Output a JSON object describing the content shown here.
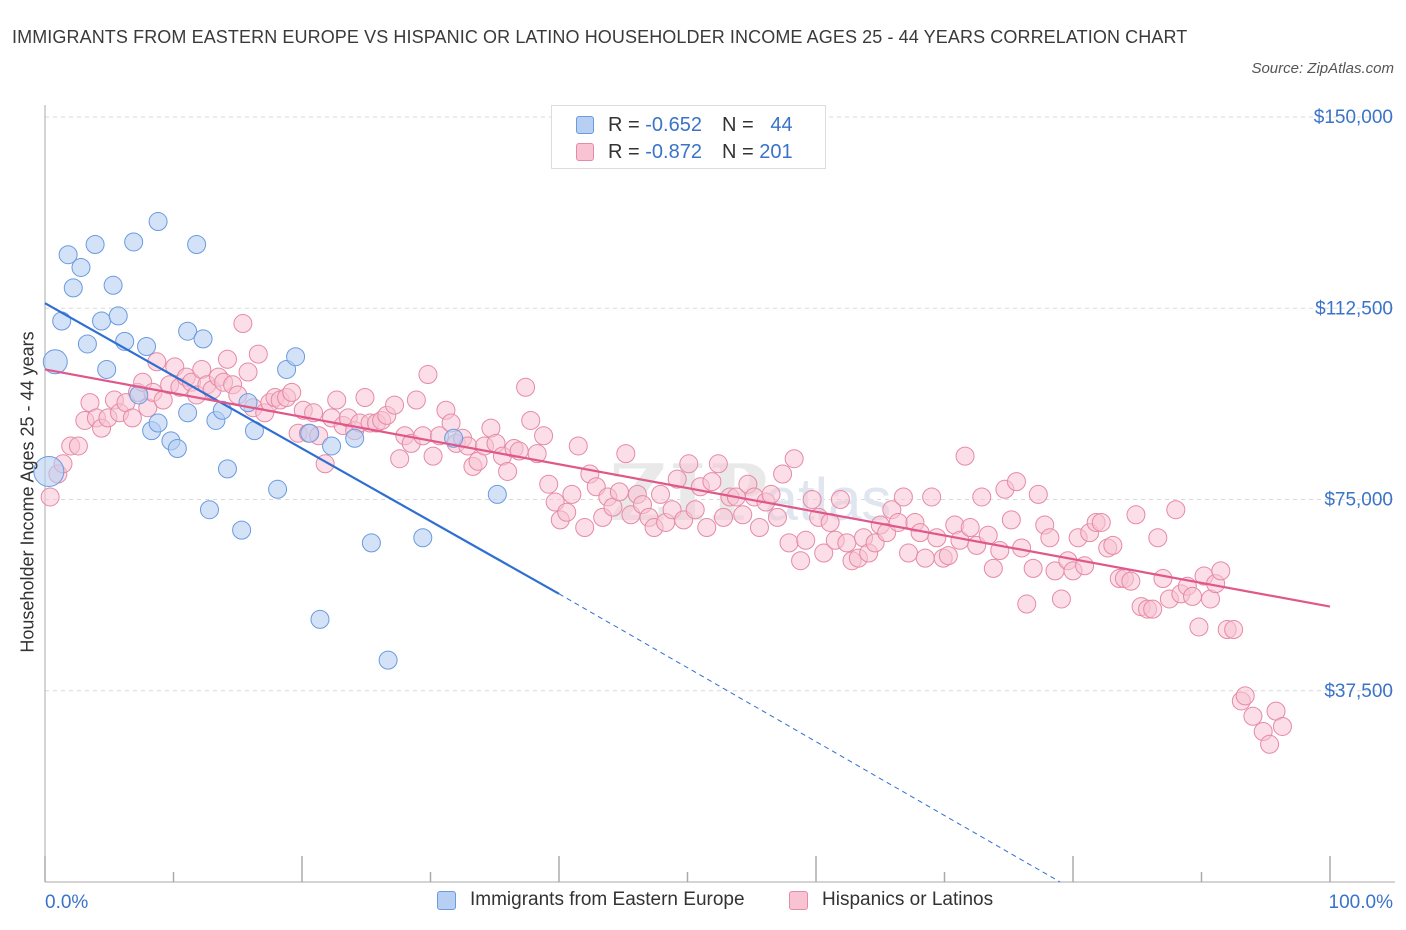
{
  "header": {
    "title": "IMMIGRANTS FROM EASTERN EUROPE VS HISPANIC OR LATINO HOUSEHOLDER INCOME AGES 25 - 44 YEARS CORRELATION CHART",
    "source": "Source: ZipAtlas.com"
  },
  "legend": {
    "r_label": "R =",
    "n_label": "N =",
    "series1_r": "-0.652",
    "series1_n": "44",
    "series2_r": "-0.872",
    "series2_n": "201"
  },
  "colors": {
    "blue_fill": "#b6cff2",
    "blue_stroke": "#6a9be0",
    "blue_line": "#2f6fd1",
    "pink_fill": "#f8c3d3",
    "pink_stroke": "#e68aa6",
    "pink_line": "#e0588a",
    "axis_text": "#3a73c8",
    "grid": "#d8d8d8"
  },
  "chart_data": {
    "type": "scatter",
    "title": "IMMIGRANTS FROM EASTERN EUROPE VS HISPANIC OR LATINO HOUSEHOLDER INCOME AGES 25 - 44 YEARS CORRELATION CHART",
    "xlabel": "",
    "ylabel": "Householder Income Ages 25 - 44 years",
    "xlim": [
      0,
      100
    ],
    "ylim": [
      0,
      150000
    ],
    "x_tick_labels": [
      "0.0%",
      "100.0%"
    ],
    "y_ticks": [
      37500,
      75000,
      112500,
      150000
    ],
    "y_tick_labels": [
      "$37,500",
      "$75,000",
      "$112,500",
      "$150,000"
    ],
    "grid": true,
    "legend_position": "top-center",
    "series": [
      {
        "name": "Immigrants from Eastern Europe",
        "color": "#6a9be0",
        "r": -0.652,
        "n": 44,
        "trend": {
          "x0": 0,
          "y0": 113500,
          "x1": 40,
          "y1": 56500,
          "dashed_to_x": 79,
          "dashed_to_y": 0
        },
        "points": [
          [
            0.3,
            80500
          ],
          [
            0.8,
            102000
          ],
          [
            1.3,
            110000
          ],
          [
            1.8,
            123000
          ],
          [
            2.2,
            116500
          ],
          [
            2.8,
            120500
          ],
          [
            3.3,
            105500
          ],
          [
            3.9,
            125000
          ],
          [
            4.4,
            110000
          ],
          [
            4.8,
            100500
          ],
          [
            5.3,
            117000
          ],
          [
            5.7,
            111000
          ],
          [
            6.2,
            106000
          ],
          [
            6.9,
            125500
          ],
          [
            7.3,
            95500
          ],
          [
            7.9,
            105000
          ],
          [
            8.3,
            88500
          ],
          [
            8.8,
            90000
          ],
          [
            8.8,
            129500
          ],
          [
            9.8,
            86500
          ],
          [
            10.3,
            85000
          ],
          [
            11.1,
            92000
          ],
          [
            11.1,
            108000
          ],
          [
            11.8,
            125000
          ],
          [
            12.3,
            106500
          ],
          [
            12.8,
            73000
          ],
          [
            13.3,
            90500
          ],
          [
            13.8,
            92500
          ],
          [
            14.2,
            81000
          ],
          [
            15.3,
            69000
          ],
          [
            15.8,
            94000
          ],
          [
            16.3,
            88500
          ],
          [
            18.1,
            77000
          ],
          [
            18.8,
            100500
          ],
          [
            19.5,
            103000
          ],
          [
            20.6,
            88000
          ],
          [
            21.4,
            51500
          ],
          [
            22.3,
            85500
          ],
          [
            24.1,
            87000
          ],
          [
            25.4,
            66500
          ],
          [
            26.7,
            43500
          ],
          [
            29.4,
            67500
          ],
          [
            35.2,
            76000
          ],
          [
            31.8,
            87000
          ]
        ]
      },
      {
        "name": "Hispanics or Latinos",
        "color": "#e68aa6",
        "r": -0.872,
        "n": 201,
        "trend": {
          "x0": 0,
          "y0": 100500,
          "x1": 100,
          "y1": 54000
        },
        "points": [
          [
            0.4,
            75500
          ],
          [
            1.0,
            80000
          ],
          [
            1.4,
            82000
          ],
          [
            2.0,
            85500
          ],
          [
            2.6,
            85500
          ],
          [
            3.1,
            90500
          ],
          [
            3.5,
            94000
          ],
          [
            4.0,
            91000
          ],
          [
            4.4,
            89000
          ],
          [
            4.9,
            91000
          ],
          [
            5.4,
            94500
          ],
          [
            5.8,
            92000
          ],
          [
            6.3,
            94000
          ],
          [
            6.8,
            91000
          ],
          [
            7.2,
            96000
          ],
          [
            7.6,
            98000
          ],
          [
            8.0,
            93000
          ],
          [
            8.4,
            96000
          ],
          [
            8.7,
            102000
          ],
          [
            9.2,
            94500
          ],
          [
            9.7,
            97500
          ],
          [
            10.1,
            101000
          ],
          [
            10.5,
            97000
          ],
          [
            11.0,
            99000
          ],
          [
            11.4,
            98000
          ],
          [
            11.8,
            95500
          ],
          [
            12.2,
            100500
          ],
          [
            12.6,
            97500
          ],
          [
            13.0,
            96500
          ],
          [
            13.5,
            99000
          ],
          [
            13.9,
            98000
          ],
          [
            14.2,
            102500
          ],
          [
            14.6,
            97500
          ],
          [
            15.0,
            95500
          ],
          [
            15.4,
            109500
          ],
          [
            15.8,
            100000
          ],
          [
            16.2,
            93000
          ],
          [
            16.6,
            103500
          ],
          [
            17.1,
            92000
          ],
          [
            17.5,
            94000
          ],
          [
            17.9,
            95000
          ],
          [
            18.3,
            94500
          ],
          [
            18.8,
            95000
          ],
          [
            19.2,
            96000
          ],
          [
            19.7,
            88000
          ],
          [
            20.1,
            92500
          ],
          [
            20.5,
            88000
          ],
          [
            20.9,
            92000
          ],
          [
            21.3,
            87500
          ],
          [
            21.8,
            82000
          ],
          [
            22.3,
            91000
          ],
          [
            22.7,
            94500
          ],
          [
            23.2,
            89500
          ],
          [
            23.6,
            91000
          ],
          [
            24.1,
            88500
          ],
          [
            24.5,
            90000
          ],
          [
            24.9,
            95000
          ],
          [
            25.3,
            90000
          ],
          [
            25.8,
            90000
          ],
          [
            26.2,
            90500
          ],
          [
            26.6,
            91500
          ],
          [
            27.2,
            93500
          ],
          [
            27.6,
            83000
          ],
          [
            28.0,
            87500
          ],
          [
            28.5,
            86000
          ],
          [
            28.9,
            94500
          ],
          [
            29.4,
            87500
          ],
          [
            29.8,
            99500
          ],
          [
            30.2,
            83500
          ],
          [
            30.7,
            87500
          ],
          [
            31.2,
            92500
          ],
          [
            31.6,
            90000
          ],
          [
            32.0,
            86000
          ],
          [
            32.5,
            87000
          ],
          [
            32.9,
            85500
          ],
          [
            33.3,
            81500
          ],
          [
            33.7,
            82500
          ],
          [
            34.2,
            85500
          ],
          [
            34.7,
            89000
          ],
          [
            35.1,
            86000
          ],
          [
            35.6,
            83500
          ],
          [
            36.0,
            80500
          ],
          [
            36.5,
            85000
          ],
          [
            36.9,
            84500
          ],
          [
            37.4,
            97000
          ],
          [
            37.8,
            90500
          ],
          [
            38.3,
            84000
          ],
          [
            38.8,
            87500
          ],
          [
            39.2,
            78000
          ],
          [
            39.7,
            74500
          ],
          [
            40.1,
            71000
          ],
          [
            40.6,
            72500
          ],
          [
            41.0,
            76000
          ],
          [
            41.5,
            85500
          ],
          [
            42.0,
            69500
          ],
          [
            42.4,
            80000
          ],
          [
            42.9,
            77500
          ],
          [
            43.4,
            71500
          ],
          [
            43.8,
            75500
          ],
          [
            44.2,
            73500
          ],
          [
            44.7,
            76500
          ],
          [
            45.2,
            84000
          ],
          [
            45.6,
            72000
          ],
          [
            46.1,
            76000
          ],
          [
            46.5,
            74000
          ],
          [
            47.0,
            71500
          ],
          [
            47.4,
            69500
          ],
          [
            47.9,
            76000
          ],
          [
            48.3,
            70500
          ],
          [
            48.8,
            73000
          ],
          [
            49.2,
            79000
          ],
          [
            49.7,
            71000
          ],
          [
            50.1,
            82000
          ],
          [
            50.6,
            73000
          ],
          [
            51.0,
            77500
          ],
          [
            51.5,
            69500
          ],
          [
            51.9,
            78500
          ],
          [
            52.4,
            82000
          ],
          [
            52.8,
            71500
          ],
          [
            53.3,
            75500
          ],
          [
            53.8,
            75500
          ],
          [
            54.3,
            72000
          ],
          [
            54.7,
            78000
          ],
          [
            55.2,
            75500
          ],
          [
            55.6,
            69500
          ],
          [
            56.1,
            74500
          ],
          [
            56.5,
            76000
          ],
          [
            57.0,
            71500
          ],
          [
            57.4,
            80000
          ],
          [
            57.9,
            66500
          ],
          [
            58.3,
            83000
          ],
          [
            58.8,
            63000
          ],
          [
            59.2,
            67000
          ],
          [
            59.7,
            75000
          ],
          [
            60.2,
            71500
          ],
          [
            60.6,
            64500
          ],
          [
            61.1,
            70500
          ],
          [
            61.5,
            67000
          ],
          [
            61.9,
            75000
          ],
          [
            62.4,
            66500
          ],
          [
            62.8,
            63000
          ],
          [
            63.3,
            63500
          ],
          [
            63.7,
            67500
          ],
          [
            64.1,
            64500
          ],
          [
            64.6,
            66500
          ],
          [
            65.0,
            70000
          ],
          [
            65.5,
            68500
          ],
          [
            65.9,
            73000
          ],
          [
            66.4,
            70500
          ],
          [
            66.8,
            75500
          ],
          [
            67.2,
            64500
          ],
          [
            67.7,
            70500
          ],
          [
            68.1,
            68500
          ],
          [
            68.5,
            63500
          ],
          [
            69.0,
            75500
          ],
          [
            69.4,
            67500
          ],
          [
            69.9,
            63500
          ],
          [
            70.3,
            64000
          ],
          [
            70.8,
            70000
          ],
          [
            71.2,
            67000
          ],
          [
            71.6,
            83500
          ],
          [
            72.0,
            69500
          ],
          [
            72.5,
            66000
          ],
          [
            72.9,
            75500
          ],
          [
            73.4,
            68000
          ],
          [
            73.8,
            61500
          ],
          [
            74.3,
            65000
          ],
          [
            74.7,
            77000
          ],
          [
            75.2,
            71000
          ],
          [
            75.6,
            78500
          ],
          [
            76.0,
            65500
          ],
          [
            76.4,
            54500
          ],
          [
            76.9,
            61500
          ],
          [
            77.3,
            76000
          ],
          [
            77.8,
            70000
          ],
          [
            78.2,
            67500
          ],
          [
            78.6,
            61000
          ],
          [
            79.1,
            55500
          ],
          [
            79.6,
            63000
          ],
          [
            80.0,
            61000
          ],
          [
            80.4,
            67500
          ],
          [
            80.9,
            62000
          ],
          [
            81.3,
            68500
          ],
          [
            81.8,
            70500
          ],
          [
            82.2,
            70500
          ],
          [
            82.7,
            65500
          ],
          [
            83.1,
            66000
          ],
          [
            83.6,
            59500
          ],
          [
            84.0,
            59500
          ],
          [
            84.5,
            59000
          ],
          [
            84.9,
            72000
          ],
          [
            85.3,
            54000
          ],
          [
            85.8,
            53500
          ],
          [
            86.2,
            53500
          ],
          [
            86.6,
            67500
          ],
          [
            87.0,
            59500
          ],
          [
            87.5,
            55500
          ],
          [
            88.0,
            73000
          ],
          [
            88.4,
            56500
          ],
          [
            88.9,
            58000
          ],
          [
            89.3,
            56000
          ],
          [
            89.8,
            50000
          ],
          [
            90.2,
            60000
          ],
          [
            90.7,
            55500
          ],
          [
            91.1,
            58500
          ],
          [
            91.5,
            61000
          ],
          [
            92.0,
            49500
          ],
          [
            92.5,
            49500
          ],
          [
            93.1,
            35500
          ],
          [
            93.4,
            36500
          ],
          [
            94.0,
            32500
          ],
          [
            94.8,
            29500
          ],
          [
            95.3,
            27000
          ],
          [
            95.8,
            33500
          ],
          [
            96.3,
            30500
          ]
        ]
      }
    ]
  },
  "bottom_legend": {
    "series1": "Immigrants from Eastern Europe",
    "series2": "Hispanics or Latinos"
  },
  "axis": {
    "x_left": "0.0%",
    "x_right": "100.0%",
    "y_label": "Householder Income Ages 25 - 44 years"
  }
}
